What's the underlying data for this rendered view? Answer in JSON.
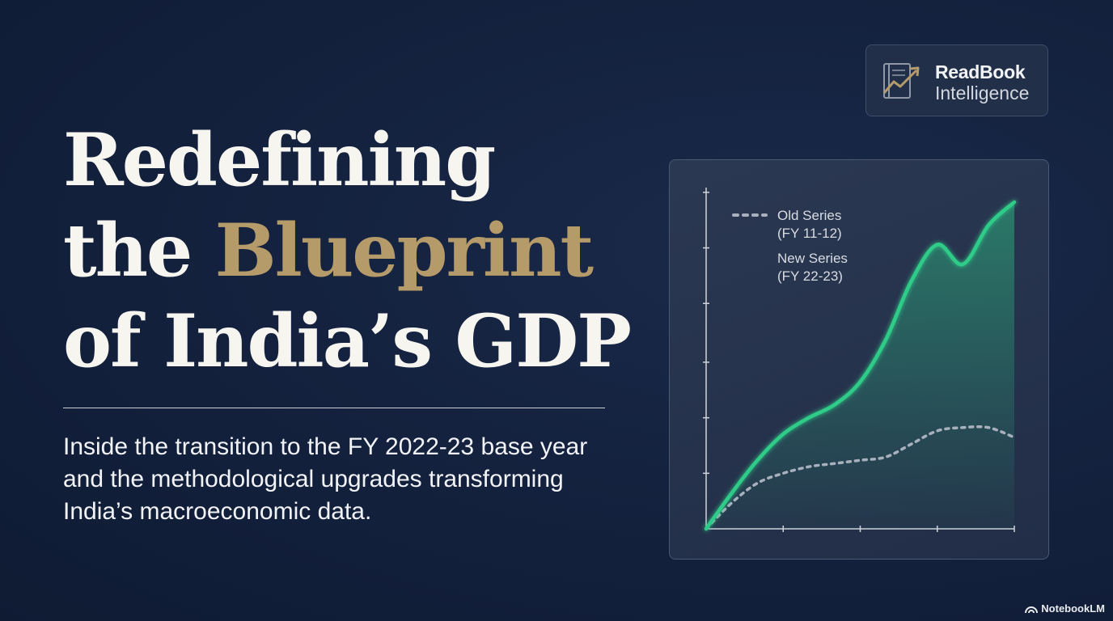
{
  "headline": {
    "line1": "Redefining",
    "line2_prefix": "the ",
    "line2_accent": "Blueprint",
    "line3": "of India’s GDP"
  },
  "subtitle": "Inside the transition to the FY 2022-23 base year and the methodological upgrades transforming India’s macroeconomic data.",
  "brand": {
    "name": "ReadBook",
    "sub": "Intelligence",
    "icon": "book-trend-icon"
  },
  "watermark": "NotebookLM",
  "colors": {
    "background": "#14223f",
    "accent_gold": "#b59a6a",
    "new_series_green": "#2ecc88",
    "old_series_gray": "#a9b0bd"
  },
  "chart_data": {
    "type": "line",
    "title": "",
    "xlabel": "",
    "ylabel": "",
    "x": [
      0,
      1,
      2,
      3,
      4,
      5,
      6,
      7,
      8,
      9,
      10,
      11,
      12
    ],
    "xlim": [
      0,
      12
    ],
    "ylim": [
      0,
      100
    ],
    "x_ticks": [
      3,
      6,
      9,
      12
    ],
    "y_ticks": [
      17,
      34,
      51,
      69,
      86,
      103
    ],
    "grid": false,
    "legend_position": "top-left",
    "series": [
      {
        "name": "Old Series\n(FY 11-12)",
        "legend_line1": "Old Series",
        "legend_line2": "(FY 11-12)",
        "style": "dotted",
        "color": "#a9b0bd",
        "values": [
          0,
          8,
          14,
          17,
          19,
          20,
          21,
          22,
          26,
          30,
          31,
          31,
          28
        ]
      },
      {
        "name": "New Series\n(FY 22-23)",
        "legend_line1": "New Series",
        "legend_line2": "(FY 22-23)",
        "style": "solid",
        "color": "#2ecc88",
        "fill": true,
        "values": [
          0,
          11,
          21,
          29,
          34,
          38,
          45,
          58,
          76,
          87,
          81,
          93,
          100
        ]
      }
    ]
  }
}
